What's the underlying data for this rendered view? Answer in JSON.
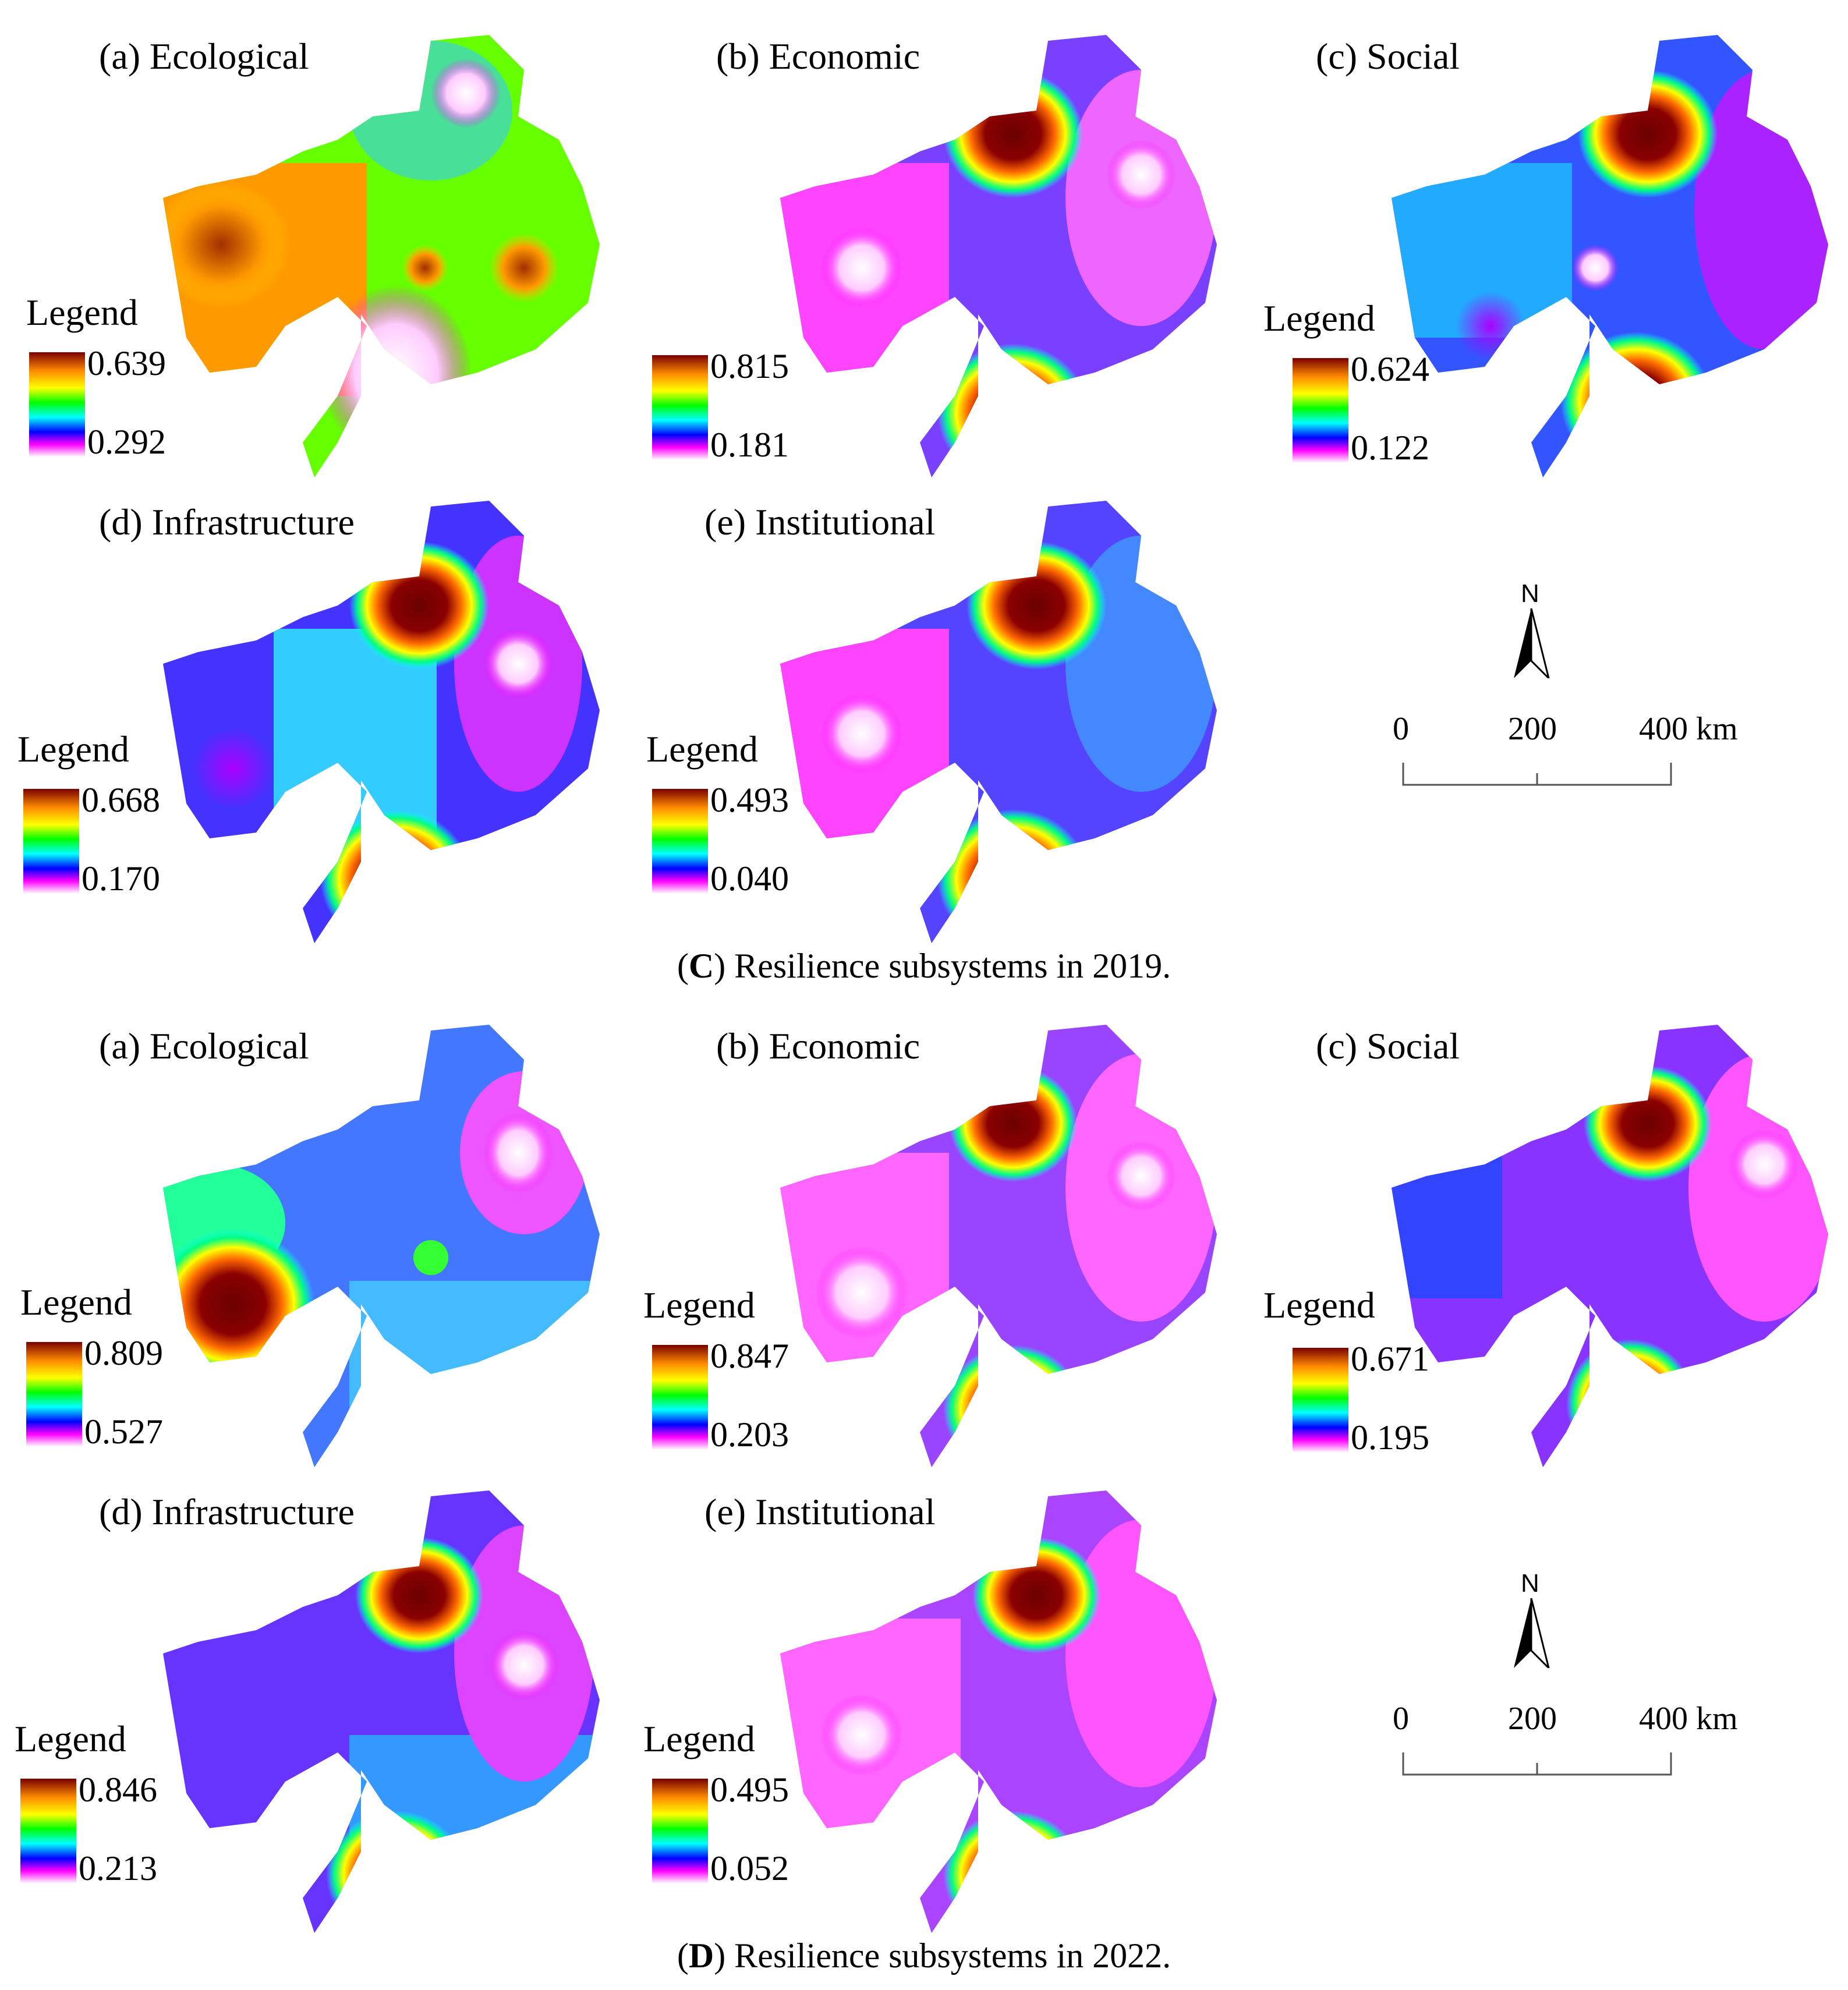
{
  "groups": [
    {
      "caption_letter": "C",
      "caption_text": ") Resilience subsystems in 2019.",
      "panels": [
        {
          "title": "(a) Ecological",
          "legend": "Legend",
          "max": "0.639",
          "min": "0.292"
        },
        {
          "title": "(b) Economic",
          "legend": "Legend",
          "max": "0.815",
          "min": "0.181"
        },
        {
          "title": "(c) Social",
          "legend": "Legend",
          "max": "0.624",
          "min": "0.122"
        },
        {
          "title": "(d) Infrastructure",
          "legend": "Legend",
          "max": "0.668",
          "min": "0.170"
        },
        {
          "title": "(e) Institutional",
          "legend": "Legend",
          "max": "0.493",
          "min": "0.040"
        }
      ]
    },
    {
      "caption_letter": "D",
      "caption_text": ") Resilience subsystems in 2022.",
      "panels": [
        {
          "title": "(a) Ecological",
          "legend": "Legend",
          "max": "0.809",
          "min": "0.527"
        },
        {
          "title": "(b) Economic",
          "legend": "Legend",
          "max": "0.847",
          "min": "0.203"
        },
        {
          "title": "(c) Social",
          "legend": "Legend",
          "max": "0.671",
          "min": "0.195"
        },
        {
          "title": "(d) Infrastructure",
          "legend": "Legend",
          "max": "0.846",
          "min": "0.213"
        },
        {
          "title": "(e) Institutional",
          "legend": "Legend",
          "max": "0.495",
          "min": "0.052"
        }
      ]
    }
  ],
  "north_label": "N",
  "scale_labels": [
    "0",
    "200",
    "400 km"
  ],
  "colors": {
    "high": "#7a0000",
    "low": "#ffffff"
  }
}
